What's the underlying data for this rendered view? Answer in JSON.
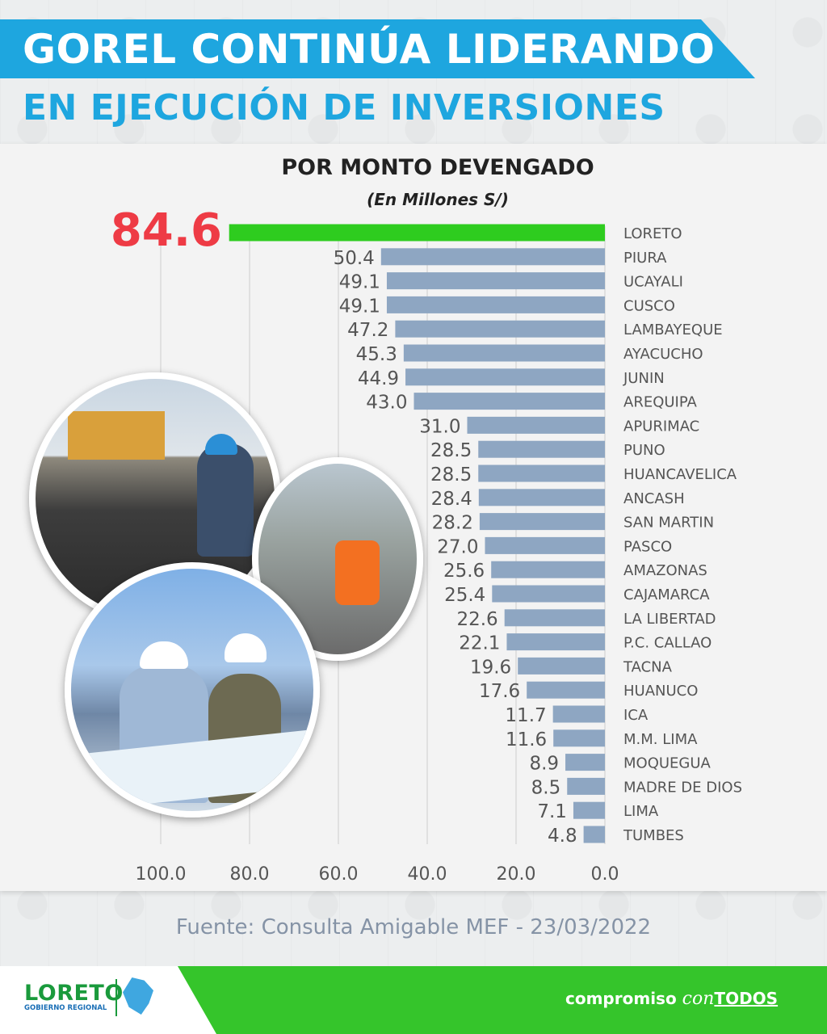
{
  "header": {
    "title_line1": "GOREL CONTINÚA LIDERANDO",
    "title_line2": "EN EJECUCIÓN DE INVERSIONES"
  },
  "chart_data": {
    "type": "bar",
    "orientation": "horizontal",
    "title": "POR MONTO DEVENGADO",
    "subtitle": "(En Millones S/)",
    "categories": [
      "LORETO",
      "PIURA",
      "UCAYALI",
      "CUSCO",
      "LAMBAYEQUE",
      "AYACUCHO",
      "JUNIN",
      "AREQUIPA",
      "APURIMAC",
      "PUNO",
      "HUANCAVELICA",
      "ANCASH",
      "SAN MARTIN",
      "PASCO",
      "AMAZONAS",
      "CAJAMARCA",
      "LA LIBERTAD",
      "P.C. CALLAO",
      "TACNA",
      "HUANUCO",
      "ICA",
      "M.M. LIMA",
      "MOQUEGUA",
      "MADRE DE DIOS",
      "LIMA",
      "TUMBES"
    ],
    "values": [
      84.6,
      50.4,
      49.1,
      49.1,
      47.2,
      45.3,
      44.9,
      43.0,
      31.0,
      28.5,
      28.5,
      28.4,
      28.2,
      27.0,
      25.6,
      25.4,
      22.6,
      22.1,
      19.6,
      17.6,
      11.7,
      11.6,
      8.9,
      8.5,
      7.1,
      4.8
    ],
    "value_labels": [
      "84.6",
      "50.4",
      "49.1",
      "49.1",
      "47.2",
      "45.3",
      "44.9",
      "43.0",
      "31.0",
      "28.5",
      "28.5",
      "28.4",
      "28.2",
      "27.0",
      "25.6",
      "25.4",
      "22.6",
      "22.1",
      "19.6",
      "17.6",
      "11.7",
      "11.6",
      "8.9",
      "8.5",
      "7.1",
      "4.8"
    ],
    "xlim": [
      0,
      100
    ],
    "x_ticks": [
      "100.0",
      "80.0",
      "60.0",
      "40.0",
      "20.0",
      "0.0"
    ],
    "x_reversed": true,
    "grid": true,
    "highlight_color": "#2ecc1f",
    "bar_color": "#8ea6c2",
    "highlight_label_color": "#ee3b45"
  },
  "photos": [
    {
      "name": "road-paving-photo"
    },
    {
      "name": "construction-worker-photo"
    },
    {
      "name": "engineers-reviewing-plans-photo"
    }
  ],
  "source_text": "Fuente: Consulta Amigable MEF - 23/03/2022",
  "footer": {
    "logo_name": "LORETO",
    "logo_sub": "GOBIERNO REGIONAL",
    "slogan_part1": "compromiso ",
    "slogan_part2": "con",
    "slogan_part3": "TODOS"
  },
  "colors": {
    "brand_blue": "#1ea6df",
    "brand_green": "#35c52b"
  }
}
